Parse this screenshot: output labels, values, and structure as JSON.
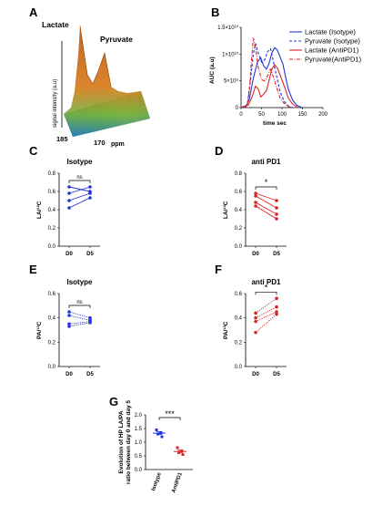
{
  "panel_letters": [
    "A",
    "B",
    "C",
    "D",
    "E",
    "F",
    "G"
  ],
  "panel_a": {
    "ylabel": "signal intensity (a.u)",
    "xlabel": "ppm",
    "ticks": [
      "185",
      "170"
    ],
    "peak_labels": [
      "Lactate",
      "Pyruvate"
    ]
  },
  "chart_data": [
    {
      "id": "B",
      "type": "line",
      "xlabel": "time sec",
      "ylabel": "AUC (a.u)",
      "xlim": [
        0,
        200
      ],
      "ylim": [
        0,
        15000000000.0
      ],
      "x_ticks": [
        "0",
        "50",
        "100",
        "150",
        "200"
      ],
      "y_ticks": [
        "0",
        "5×10⁹",
        "1×10¹⁰",
        "1.5×10¹⁰"
      ],
      "legend_position": "top-right",
      "series": [
        {
          "name": "Lactate (Isotype)",
          "color": "#2233dd",
          "dash": "solid",
          "x": [
            0,
            12,
            20,
            30,
            40,
            48,
            55,
            62,
            68,
            75,
            82,
            88,
            95,
            102,
            108,
            115,
            125,
            135,
            145,
            150
          ],
          "y": [
            0,
            200000000.0,
            1500000000.0,
            5500000000.0,
            8500000000.0,
            9300000000.0,
            7800000000.0,
            7200000000.0,
            8200000000.0,
            10200000000.0,
            11200000000.0,
            10800000000.0,
            9500000000.0,
            8200000000.0,
            6000000000.0,
            3500000000.0,
            1500000000.0,
            500000000.0,
            100000000.0,
            0
          ]
        },
        {
          "name": "Pyruvate (Isotype)",
          "color": "#2233dd",
          "dash": "dashed",
          "x": [
            0,
            15,
            22,
            30,
            35,
            42,
            50,
            58,
            65,
            72,
            80,
            88,
            95,
            105,
            115,
            125
          ],
          "y": [
            0,
            500000000.0,
            4500000000.0,
            10000000000.0,
            12000000000.0,
            10200000000.0,
            8500000000.0,
            9000000000.0,
            10500000000.0,
            11000000000.0,
            8200000000.0,
            5500000000.0,
            3000000000.0,
            1200000000.0,
            300000000.0,
            0
          ]
        },
        {
          "name": "Lactate (AntiPD1)",
          "color": "#dd2222",
          "dash": "solid",
          "x": [
            0,
            18,
            28,
            35,
            42,
            48,
            55,
            62,
            68,
            75,
            82,
            90,
            98,
            108,
            115,
            125,
            135,
            140
          ],
          "y": [
            0,
            500000000.0,
            2200000000.0,
            4000000000.0,
            3500000000.0,
            2000000000.0,
            2500000000.0,
            3200000000.0,
            5000000000.0,
            7200000000.0,
            8000000000.0,
            7200000000.0,
            5500000000.0,
            3500000000.0,
            1800000000.0,
            700000000.0,
            200000000.0,
            0
          ]
        },
        {
          "name": "Pyruvate(AntiPD1)",
          "color": "#dd2222",
          "dash": "dashdot",
          "x": [
            0,
            15,
            20,
            25,
            30,
            35,
            42,
            50,
            58,
            65,
            72,
            80,
            88,
            95,
            105,
            115,
            125
          ],
          "y": [
            0,
            500000000.0,
            3000000000.0,
            8500000000.0,
            13000000000.0,
            11200000000.0,
            7500000000.0,
            5200000000.0,
            5000000000.0,
            6000000000.0,
            7200000000.0,
            5500000000.0,
            3500000000.0,
            1800000000.0,
            800000000.0,
            200000000.0,
            0
          ]
        }
      ]
    },
    {
      "id": "C",
      "type": "line",
      "title": "Isotype",
      "ylabel": "LA/¹³C",
      "categories": [
        "D0",
        "D5"
      ],
      "ylim": [
        0,
        0.8
      ],
      "y_ticks": [
        "0.0",
        "0.2",
        "0.4",
        "0.6",
        "0.8"
      ],
      "significance": "ns",
      "color": "#2233dd",
      "dash": "solid",
      "pairs": [
        [
          0.65,
          0.6
        ],
        [
          0.58,
          0.65
        ],
        [
          0.5,
          0.58
        ],
        [
          0.42,
          0.53
        ]
      ]
    },
    {
      "id": "D",
      "type": "line",
      "title": "anti PD1",
      "ylabel": "LA/¹³C",
      "categories": [
        "D0",
        "D5"
      ],
      "ylim": [
        0,
        0.8
      ],
      "y_ticks": [
        "0.0",
        "0.2",
        "0.4",
        "0.6",
        "0.8"
      ],
      "significance": "*",
      "color": "#dd2222",
      "dash": "solid",
      "pairs": [
        [
          0.58,
          0.5
        ],
        [
          0.55,
          0.42
        ],
        [
          0.48,
          0.35
        ],
        [
          0.44,
          0.3
        ]
      ]
    },
    {
      "id": "E",
      "type": "line",
      "title": "Isotype",
      "ylabel": "PA/¹³C",
      "categories": [
        "D0",
        "D5"
      ],
      "ylim": [
        0,
        0.6
      ],
      "y_ticks": [
        "0.0",
        "0.2",
        "0.4",
        "0.6"
      ],
      "significance": "ns",
      "color": "#2233dd",
      "dash": "dotted",
      "pairs": [
        [
          0.45,
          0.4
        ],
        [
          0.42,
          0.38
        ],
        [
          0.35,
          0.37
        ],
        [
          0.33,
          0.36
        ]
      ]
    },
    {
      "id": "F",
      "type": "line",
      "title": "anti PD1",
      "ylabel": "PA/¹³C",
      "categories": [
        "D0",
        "D5"
      ],
      "ylim": [
        0,
        0.6
      ],
      "y_ticks": [
        "0.0",
        "0.2",
        "0.4",
        "0.6"
      ],
      "significance": "*",
      "color": "#dd2222",
      "dash": "dotted",
      "pairs": [
        [
          0.44,
          0.56
        ],
        [
          0.4,
          0.49
        ],
        [
          0.37,
          0.45
        ],
        [
          0.28,
          0.43
        ]
      ]
    },
    {
      "id": "G",
      "type": "scatter",
      "ylabel": "Evolution of HP LA/PA ratio between day 0 and day 5",
      "categories": [
        "Isotype",
        "AntiPD1"
      ],
      "ylim": [
        0,
        2.0
      ],
      "y_ticks": [
        "0.0",
        "0.5",
        "1.0",
        "1.5",
        "2.0"
      ],
      "significance": "***",
      "groups": [
        {
          "name": "Isotype",
          "color": "#2233dd",
          "values": [
            1.45,
            1.35,
            1.3,
            1.2
          ],
          "mean": 1.33,
          "sem": 0.05
        },
        {
          "name": "AntiPD1",
          "color": "#dd2222",
          "values": [
            0.8,
            0.68,
            0.62,
            0.55
          ],
          "mean": 0.66,
          "sem": 0.05
        }
      ]
    }
  ]
}
